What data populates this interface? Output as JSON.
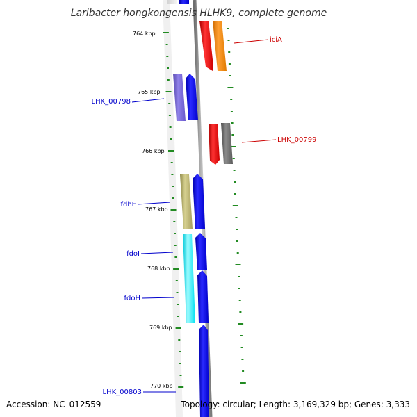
{
  "title": "Laribacter hongkongensis HLHK9, complete genome",
  "footer": {
    "accession": "Accession: NC_012559",
    "summary": "Topology: circular; Length: 3,169,329 bp; Genes: 3,333"
  },
  "ticks": [
    {
      "label": "764 kbp"
    },
    {
      "label": "765 kbp"
    },
    {
      "label": "766 kbp"
    },
    {
      "label": "767 kbp"
    },
    {
      "label": "768 kbp"
    },
    {
      "label": "769 kbp"
    },
    {
      "label": "770 kbp"
    }
  ],
  "genes": [
    {
      "name": "iciA",
      "strand": "forward",
      "color": "#cc0000"
    },
    {
      "name": "LHK_00798",
      "strand": "reverse",
      "color": "#0000cc"
    },
    {
      "name": "LHK_00799",
      "strand": "forward",
      "color": "#cc0000"
    },
    {
      "name": "fdhE",
      "strand": "reverse",
      "color": "#0000cc"
    },
    {
      "name": "fdoI",
      "strand": "reverse",
      "color": "#0000cc"
    },
    {
      "name": "fdoH",
      "strand": "reverse",
      "color": "#0000cc"
    },
    {
      "name": "LHK_00803",
      "strand": "reverse",
      "color": "#0000cc"
    }
  ],
  "colors": {
    "forward_cds": "#ff0000",
    "reverse_cds": "#0000ff",
    "forward_cog_orange": "#ff8c00",
    "forward_cog_gray": "#707070",
    "reverse_cog_purple": "#7060d0",
    "reverse_cog_khaki": "#bdb76b",
    "reverse_cog_cyan": "#00ffff",
    "backbone": "#999999",
    "ticks": "#228b22"
  }
}
